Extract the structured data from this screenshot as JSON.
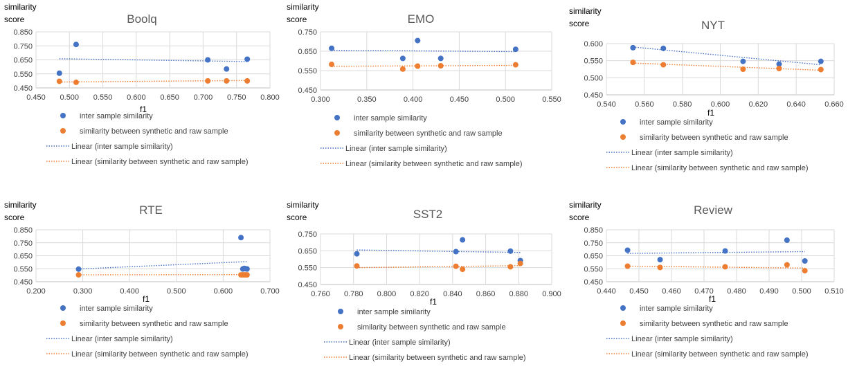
{
  "colors": {
    "inter": "#4472C4",
    "synthetic": "#ED7D31",
    "grid": "#D9D9D9",
    "axis": "#BFBFBF"
  },
  "chart_data": [
    {
      "type": "scatter",
      "title": "Boolq",
      "xlabel": "f1",
      "ylabel": [
        "similarity",
        "score"
      ],
      "xlim": [
        0.45,
        0.8
      ],
      "ylim": [
        0.45,
        0.85
      ],
      "xticks": [
        "0.450",
        "0.500",
        "0.550",
        "0.600",
        "0.650",
        "0.700",
        "0.750",
        "0.800"
      ],
      "yticks": [
        "0.450",
        "0.550",
        "0.650",
        "0.750",
        "0.850"
      ],
      "grid": true,
      "legend_position": "bottom",
      "series": [
        {
          "name": "inter sample similarity",
          "x": [
            0.485,
            0.51,
            0.707,
            0.735,
            0.766
          ],
          "y": [
            0.555,
            0.76,
            0.65,
            0.585,
            0.655
          ]
        },
        {
          "name": "similarity between synthetic and raw sample",
          "x": [
            0.485,
            0.51,
            0.707,
            0.735,
            0.766
          ],
          "y": [
            0.497,
            0.49,
            0.5,
            0.5,
            0.5
          ]
        }
      ],
      "trendlines": [
        {
          "name": "Linear (inter sample similarity)",
          "x": [
            0.485,
            0.766
          ],
          "y": [
            0.658,
            0.638
          ]
        },
        {
          "name": "Linear (similarity between synthetic and raw sample)",
          "x": [
            0.485,
            0.766
          ],
          "y": [
            0.492,
            0.503
          ]
        }
      ]
    },
    {
      "type": "scatter",
      "title": "EMO",
      "xlabel": "",
      "ylabel": [
        "similarity",
        "score"
      ],
      "xlim": [
        0.3,
        0.55
      ],
      "ylim": [
        0.45,
        0.75
      ],
      "xticks": [
        "0.300",
        "0.350",
        "0.400",
        "0.450",
        "0.500",
        "0.550"
      ],
      "yticks": [
        "0.450",
        "0.550",
        "0.650",
        "0.750"
      ],
      "grid": true,
      "legend_position": "bottom",
      "series": [
        {
          "name": "inter sample similarity",
          "x": [
            0.312,
            0.389,
            0.405,
            0.43,
            0.511
          ],
          "y": [
            0.665,
            0.613,
            0.705,
            0.613,
            0.66
          ]
        },
        {
          "name": "similarity between synthetic and raw sample",
          "x": [
            0.312,
            0.389,
            0.405,
            0.43,
            0.511
          ],
          "y": [
            0.582,
            0.558,
            0.573,
            0.575,
            0.58
          ]
        }
      ],
      "trendlines": [
        {
          "name": "Linear (inter sample similarity)",
          "x": [
            0.312,
            0.511
          ],
          "y": [
            0.655,
            0.648
          ]
        },
        {
          "name": "Linear (similarity between synthetic and raw sample)",
          "x": [
            0.312,
            0.511
          ],
          "y": [
            0.572,
            0.577
          ]
        }
      ]
    },
    {
      "type": "scatter",
      "title": "NYT",
      "xlabel": "f1",
      "ylabel": [
        "similarity",
        "score"
      ],
      "xlim": [
        0.54,
        0.66
      ],
      "ylim": [
        0.45,
        0.6
      ],
      "xticks": [
        "0.540",
        "0.560",
        "0.580",
        "0.600",
        "0.620",
        "0.640",
        "0.660"
      ],
      "yticks": [
        "0.450",
        "0.500",
        "0.550",
        "0.600"
      ],
      "grid": true,
      "legend_position": "bottom",
      "series": [
        {
          "name": "inter sample similarity",
          "x": [
            0.554,
            0.57,
            0.612,
            0.631,
            0.653
          ],
          "y": [
            0.588,
            0.586,
            0.548,
            0.54,
            0.548
          ]
        },
        {
          "name": "similarity between synthetic and raw sample",
          "x": [
            0.554,
            0.57,
            0.612,
            0.631,
            0.653
          ],
          "y": [
            0.545,
            0.538,
            0.525,
            0.527,
            0.524
          ]
        }
      ],
      "trendlines": [
        {
          "name": "Linear (inter sample similarity)",
          "x": [
            0.554,
            0.653
          ],
          "y": [
            0.59,
            0.538
          ]
        },
        {
          "name": "Linear (similarity between synthetic and raw sample)",
          "x": [
            0.554,
            0.653
          ],
          "y": [
            0.543,
            0.522
          ]
        }
      ]
    },
    {
      "type": "scatter",
      "title": "RTE",
      "xlabel": "f1",
      "ylabel": [
        "similarity",
        "score"
      ],
      "xlim": [
        0.2,
        0.7
      ],
      "ylim": [
        0.45,
        0.85
      ],
      "xticks": [
        "0.200",
        "0.300",
        "0.400",
        "0.500",
        "0.600",
        "0.700"
      ],
      "yticks": [
        "0.450",
        "0.550",
        "0.650",
        "0.750",
        "0.850"
      ],
      "grid": true,
      "legend_position": "bottom",
      "series": [
        {
          "name": "inter sample similarity",
          "x": [
            0.291,
            0.638,
            0.642,
            0.645,
            0.648,
            0.651
          ],
          "y": [
            0.547,
            0.79,
            0.548,
            0.553,
            0.55,
            0.548
          ]
        },
        {
          "name": "similarity between synthetic and raw sample",
          "x": [
            0.291,
            0.638,
            0.642,
            0.645,
            0.648,
            0.651
          ],
          "y": [
            0.503,
            0.503,
            0.503,
            0.503,
            0.503,
            0.503
          ]
        }
      ],
      "trendlines": [
        {
          "name": "Linear (inter sample similarity)",
          "x": [
            0.291,
            0.651
          ],
          "y": [
            0.548,
            0.605
          ]
        },
        {
          "name": "Linear (similarity between synthetic and raw sample)",
          "x": [
            0.291,
            0.651
          ],
          "y": [
            0.503,
            0.505
          ]
        }
      ]
    },
    {
      "type": "scatter",
      "title": "SST2",
      "xlabel": "f1",
      "ylabel": [
        "similarity",
        "score"
      ],
      "xlim": [
        0.76,
        0.9
      ],
      "ylim": [
        0.45,
        0.75
      ],
      "xticks": [
        "0.760",
        "0.780",
        "0.800",
        "0.820",
        "0.840",
        "0.860",
        "0.880",
        "0.900"
      ],
      "yticks": [
        "0.450",
        "0.550",
        "0.650",
        "0.750"
      ],
      "grid": true,
      "legend_position": "bottom",
      "series": [
        {
          "name": "inter sample similarity",
          "x": [
            0.782,
            0.842,
            0.846,
            0.875,
            0.881
          ],
          "y": [
            0.632,
            0.645,
            0.715,
            0.648,
            0.592
          ]
        },
        {
          "name": "similarity between synthetic and raw sample",
          "x": [
            0.782,
            0.842,
            0.846,
            0.875,
            0.881
          ],
          "y": [
            0.56,
            0.558,
            0.54,
            0.555,
            0.575
          ]
        }
      ],
      "trendlines": [
        {
          "name": "Linear (inter sample similarity)",
          "x": [
            0.782,
            0.881
          ],
          "y": [
            0.655,
            0.64
          ]
        },
        {
          "name": "Linear (similarity between synthetic and raw sample)",
          "x": [
            0.782,
            0.881
          ],
          "y": [
            0.55,
            0.562
          ]
        }
      ]
    },
    {
      "type": "scatter",
      "title": "Review",
      "xlabel": "f1",
      "ylabel": [
        "similarity",
        "score"
      ],
      "xlim": [
        0.44,
        0.51
      ],
      "ylim": [
        0.45,
        0.85
      ],
      "xticks": [
        "0.440",
        "0.450",
        "0.460",
        "0.470",
        "0.480",
        "0.490",
        "0.500",
        "0.510"
      ],
      "yticks": [
        "0.450",
        "0.550",
        "0.650",
        "0.750",
        "0.850"
      ],
      "grid": true,
      "legend_position": "bottom",
      "series": [
        {
          "name": "inter sample similarity",
          "x": [
            0.4465,
            0.4565,
            0.4765,
            0.4955,
            0.501
          ],
          "y": [
            0.693,
            0.62,
            0.687,
            0.77,
            0.61
          ]
        },
        {
          "name": "similarity between synthetic and raw sample",
          "x": [
            0.4465,
            0.4565,
            0.4765,
            0.4955,
            0.501
          ],
          "y": [
            0.57,
            0.56,
            0.565,
            0.58,
            0.535
          ]
        }
      ],
      "trendlines": [
        {
          "name": "Linear (inter sample similarity)",
          "x": [
            0.4465,
            0.501
          ],
          "y": [
            0.668,
            0.682
          ]
        },
        {
          "name": "Linear (similarity between synthetic and raw sample)",
          "x": [
            0.4465,
            0.501
          ],
          "y": [
            0.57,
            0.555
          ]
        }
      ]
    }
  ]
}
